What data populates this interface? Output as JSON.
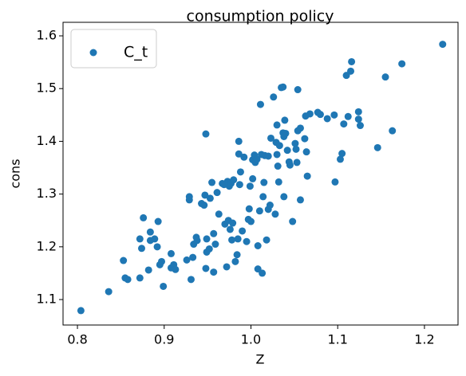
{
  "chart_data": {
    "type": "scatter",
    "title": "consumption policy",
    "x_label": "Z",
    "y_label": "cons",
    "series": [
      {
        "name": "C_t",
        "color": "#1f77b4",
        "x": [
          0.804,
          0.836,
          0.853,
          0.855,
          0.858,
          0.872,
          0.872,
          0.874,
          0.876,
          0.882,
          0.884,
          0.884,
          0.889,
          0.892,
          0.893,
          0.895,
          0.897,
          0.899,
          0.908,
          0.908,
          0.911,
          0.913,
          0.926,
          0.929,
          0.929,
          0.931,
          0.933,
          0.934,
          0.937,
          0.938,
          0.943,
          0.946,
          0.947,
          0.948,
          0.948,
          0.949,
          0.949,
          0.952,
          0.953,
          0.955,
          0.957,
          0.957,
          0.959,
          0.961,
          0.963,
          0.967,
          0.969,
          0.97,
          0.972,
          0.973,
          0.974,
          0.975,
          0.976,
          0.977,
          0.978,
          0.979,
          0.98,
          0.982,
          0.984,
          0.985,
          0.986,
          0.986,
          0.987,
          0.988,
          0.99,
          0.992,
          0.995,
          0.997,
          0.998,
          0.999,
          1.0,
          1.002,
          1.002,
          1.004,
          1.005,
          1.007,
          1.008,
          1.008,
          1.01,
          1.011,
          1.012,
          1.013,
          1.014,
          1.015,
          1.016,
          1.018,
          1.02,
          1.02,
          1.022,
          1.023,
          1.026,
          1.028,
          1.029,
          1.03,
          1.03,
          1.031,
          1.032,
          1.033,
          1.035,
          1.037,
          1.037,
          1.038,
          1.038,
          1.039,
          1.04,
          1.042,
          1.044,
          1.045,
          1.048,
          1.051,
          1.052,
          1.053,
          1.054,
          1.054,
          1.057,
          1.057,
          1.062,
          1.063,
          1.064,
          1.065,
          1.068,
          1.077,
          1.08,
          1.088,
          1.096,
          1.097,
          1.103,
          1.105,
          1.107,
          1.11,
          1.112,
          1.115,
          1.116,
          1.124,
          1.124,
          1.126,
          1.146,
          1.155,
          1.163,
          1.174,
          1.221
        ],
        "values": [
          1.079,
          1.115,
          1.174,
          1.141,
          1.138,
          1.141,
          1.215,
          1.197,
          1.255,
          1.156,
          1.228,
          1.212,
          1.215,
          1.2,
          1.248,
          1.166,
          1.172,
          1.125,
          1.187,
          1.16,
          1.166,
          1.157,
          1.175,
          1.289,
          1.295,
          1.138,
          1.18,
          1.205,
          1.218,
          1.212,
          1.282,
          1.279,
          1.298,
          1.159,
          1.414,
          1.19,
          1.215,
          1.196,
          1.292,
          1.322,
          1.225,
          1.152,
          1.205,
          1.303,
          1.262,
          1.32,
          1.318,
          1.243,
          1.162,
          1.324,
          1.25,
          1.315,
          1.233,
          1.32,
          1.213,
          1.245,
          1.327,
          1.172,
          1.185,
          1.215,
          1.4,
          1.376,
          1.318,
          1.342,
          1.23,
          1.37,
          1.21,
          1.252,
          1.272,
          1.315,
          1.248,
          1.329,
          1.365,
          1.374,
          1.36,
          1.366,
          1.158,
          1.202,
          1.268,
          1.47,
          1.375,
          1.15,
          1.295,
          1.322,
          1.373,
          1.213,
          1.271,
          1.372,
          1.279,
          1.406,
          1.484,
          1.262,
          1.398,
          1.375,
          1.431,
          1.353,
          1.323,
          1.392,
          1.502,
          1.503,
          1.416,
          1.409,
          1.295,
          1.44,
          1.415,
          1.383,
          1.361,
          1.355,
          1.248,
          1.396,
          1.385,
          1.36,
          1.42,
          1.498,
          1.289,
          1.425,
          1.405,
          1.448,
          1.38,
          1.334,
          1.452,
          1.455,
          1.451,
          1.443,
          1.45,
          1.323,
          1.366,
          1.377,
          1.433,
          1.525,
          1.447,
          1.533,
          1.551,
          1.456,
          1.442,
          1.43,
          1.388,
          1.522,
          1.42,
          1.547,
          1.584
        ]
      }
    ],
    "xlim": [
      0.7834,
      1.2387
    ],
    "ylim": [
      1.0517,
      1.6257
    ],
    "xticks": [
      0.8,
      0.9,
      {
        "value": 1,
        "label": "1.0"
      },
      1.1,
      1.2
    ],
    "yticks": [
      1.1,
      1.2,
      1.3,
      1.4,
      1.5,
      1.6
    ],
    "legend": "upper left"
  }
}
